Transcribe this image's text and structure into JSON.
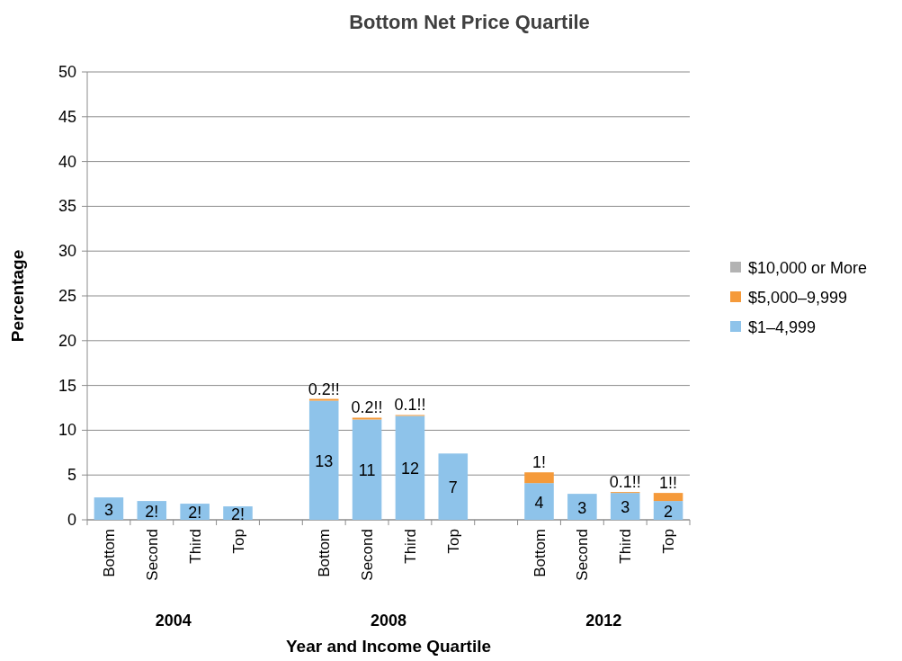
{
  "chart_data": {
    "type": "bar",
    "title": "Bottom Net Price Quartile",
    "xlabel": "Year and Income Quartile",
    "ylabel": "Percentage",
    "categories": [
      "Bottom",
      "Second",
      "Third",
      "Top",
      null,
      "Bottom",
      "Second",
      "Third",
      "Top",
      null,
      "Bottom",
      "Second",
      "Third",
      "Top"
    ],
    "annotations": [
      "2004",
      "2008",
      "2012"
    ],
    "stacked": true,
    "series": [
      {
        "name": "$1–4,999",
        "color": "#8ec3ea",
        "values": [
          2.5,
          2.1,
          1.8,
          1.5,
          null,
          13.3,
          11.2,
          11.6,
          7.4,
          null,
          4.1,
          2.9,
          3.0,
          2.1
        ],
        "value_labels": [
          "3",
          "2!",
          "2!",
          "2!",
          null,
          "13",
          "11",
          "12",
          "7",
          null,
          "4",
          "3",
          "3",
          "2"
        ]
      },
      {
        "name": "$5,000–9,999",
        "color": "#f59a3a",
        "values": [
          null,
          null,
          null,
          null,
          null,
          0.2,
          0.2,
          0.1,
          null,
          null,
          1.2,
          null,
          0.1,
          0.9
        ],
        "value_labels": [
          null,
          null,
          null,
          null,
          null,
          "0.2!!",
          "0.2!!",
          "0.1!!",
          null,
          null,
          "1!",
          null,
          "0.1!!",
          "1!!"
        ]
      },
      {
        "name": "$10,000 or More",
        "color": "#b3b3b3",
        "values": [
          null,
          null,
          null,
          null,
          null,
          null,
          null,
          null,
          null,
          null,
          null,
          null,
          null,
          null
        ]
      }
    ],
    "ylim": [
      0,
      50
    ],
    "yticks": [
      0,
      5,
      10,
      15,
      20,
      25,
      30,
      35,
      40,
      45,
      50
    ],
    "grid": "y",
    "legend": "right"
  }
}
